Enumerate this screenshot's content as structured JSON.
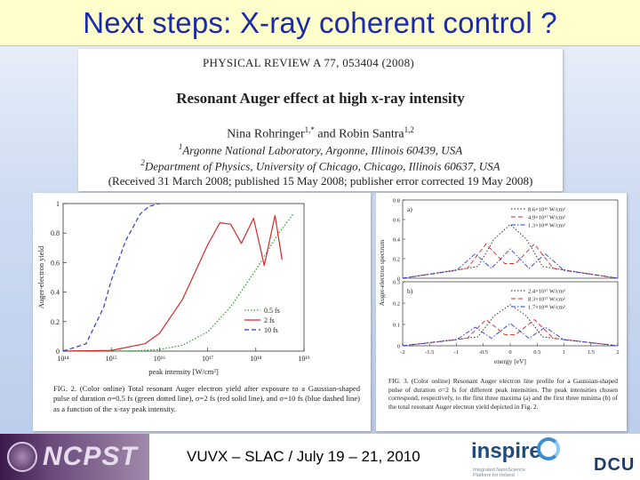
{
  "slide": {
    "title": "Next steps: X-ray coherent control ?",
    "footer_text": "VUVX – SLAC / July 19 – 21, 2010"
  },
  "paper": {
    "journal": "PHYSICAL REVIEW A 77, 053404 (2008)",
    "title": "Resonant Auger effect at high x-ray intensity",
    "author1": "Nina Rohringer",
    "author1_sup": "1,*",
    "and": " and ",
    "author2": "Robin Santra",
    "author2_sup": "1,2",
    "affil1_sup": "1",
    "affil1": "Argonne National Laboratory, Argonne, Illinois 60439, USA",
    "affil2_sup": "2",
    "affil2": "Department of Physics, University of Chicago, Chicago, Illinois 60637, USA",
    "received": "(Received 31 March 2008; published 15 May 2008; publisher error corrected 19 May 2008)"
  },
  "fig2": {
    "caption": "FIG. 2. (Color online) Total resonant Auger electron yield after exposure to a Gaussian-shaped pulse of duration σ=0.5 fs (green dotted line), σ=2 fs (red solid line), and σ=10 fs (blue dashed line) as a function of the x-ray peak intensity."
  },
  "fig3": {
    "caption": "FIG. 3. (Color online) Resonant Auger electron line profile for a Gaussian-shaped pulse of duration σ=2 fs for different peak intensities. The peak intensities chosen correspond, respectively, to the first three maxima (a) and the first three minima (b) of the total resonant Auger electron yield depicted in Fig. 2."
  },
  "chart_data": [
    {
      "type": "line",
      "xscale": "log",
      "xlabel": "peak intensity [W/cm²]",
      "ylabel": "Auger-electron yield",
      "xlim": [
        100000000000000.0,
        1e+19
      ],
      "ylim": [
        0,
        1
      ],
      "xticks": [
        "10¹⁴",
        "10¹⁵",
        "10¹⁶",
        "10¹⁷",
        "10¹⁸",
        "10¹⁹"
      ],
      "yticks": [
        "0",
        "0.2",
        "0.4",
        "0.6",
        "0.8",
        "1"
      ],
      "legend_position": "bottom-right",
      "series": [
        {
          "name": "0.5 fs",
          "style": "dotted",
          "color": "#2a9a2a",
          "x": [
            100000000000000.0,
            1000000000000000.0,
            3000000000000000.0,
            1e+16,
            3e+16,
            1e+17,
            3e+17,
            1e+18,
            3e+18,
            6e+18
          ],
          "y": [
            0,
            0,
            0.002,
            0.01,
            0.04,
            0.13,
            0.3,
            0.55,
            0.8,
            0.93
          ]
        },
        {
          "name": "2 fs",
          "style": "solid",
          "color": "#d42a2a",
          "x": [
            100000000000000.0,
            1000000000000000.0,
            5000000000000000.0,
            1e+16,
            3e+16,
            1e+17,
            1.8e+17,
            3e+17,
            5e+17,
            9e+17,
            1.5e+18,
            2.5e+18,
            3.5e+18
          ],
          "y": [
            0,
            0.005,
            0.05,
            0.12,
            0.35,
            0.72,
            0.87,
            0.86,
            0.73,
            0.9,
            0.58,
            0.92,
            0.62
          ]
        },
        {
          "name": "10 fs",
          "style": "dashed",
          "color": "#2a3ad4",
          "x": [
            100000000000000.0,
            300000000000000.0,
            700000000000000.0,
            1000000000000000.0,
            2000000000000000.0,
            4000000000000000.0,
            6000000000000000.0,
            1e+16
          ],
          "y": [
            0,
            0.05,
            0.3,
            0.48,
            0.75,
            0.93,
            0.98,
            1.0
          ]
        }
      ]
    },
    {
      "type": "line",
      "xlabel": "energy [eV]",
      "ylabel": "Auger-electron spectrum",
      "xlim": [
        -2,
        2
      ],
      "panels": [
        {
          "label": "a)",
          "ylim": [
            0,
            0.8
          ],
          "yticks": [
            "0",
            "0.2",
            "0.4",
            "0.6",
            "0.8"
          ],
          "series": [
            {
              "name": "8.6×10¹⁶ W/cm²",
              "color": "#222222",
              "style": "dotted"
            },
            {
              "name": "4.9×10¹⁷ W/cm²",
              "color": "#d42a2a",
              "style": "dashed"
            },
            {
              "name": "1.3×10¹⁸ W/cm²",
              "color": "#2a3ad4",
              "style": "dashdot"
            }
          ]
        },
        {
          "label": "b)",
          "ylim": [
            0,
            0.3
          ],
          "yticks": [
            "0",
            "0.1",
            "0.2",
            "0.3"
          ],
          "series": [
            {
              "name": "2.4×10¹⁷ W/cm²",
              "color": "#222222",
              "style": "dotted"
            },
            {
              "name": "8.3×10¹⁷ W/cm²",
              "color": "#d42a2a",
              "style": "dashed"
            },
            {
              "name": "1.7×10¹⁸ W/cm²",
              "color": "#2a3ad4",
              "style": "dashdot"
            }
          ]
        }
      ],
      "xticks": [
        "-2",
        "-1.5",
        "-1",
        "-0.5",
        "0",
        "0.5",
        "1",
        "1.5",
        "2"
      ]
    }
  ]
}
